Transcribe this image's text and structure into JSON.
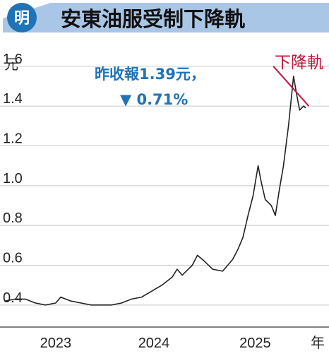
{
  "header": {
    "logo_char": "明",
    "title": "安東油服受制下降軌",
    "logo_bg": "#1f73b7",
    "banner_color": "#a9c6e6"
  },
  "annotation": {
    "line1": "昨收報1.39元，",
    "line2": "▼ 0.71%",
    "color": "#1f73b7"
  },
  "resistance": {
    "label": "下降軌",
    "color": "#c0143c",
    "from": {
      "t": 2025.4,
      "price": 1.6
    },
    "to": {
      "t": 2025.75,
      "price": 1.4
    }
  },
  "chart_data": {
    "type": "line",
    "title": "安東油服受制下降軌",
    "ylabel": "元",
    "xlabel": "年",
    "ylim": [
      0.3,
      1.72
    ],
    "xlim": [
      2022.7,
      2025.95
    ],
    "yticks": [
      0.4,
      0.6,
      0.8,
      1.0,
      1.2,
      1.4,
      1.6
    ],
    "ytick_labels": [
      "0.4",
      "0.6",
      "0.8",
      "1.0",
      "1.2",
      "1.4",
      "1.6"
    ],
    "xticks": [
      2023.25,
      2024.22,
      2025.22
    ],
    "xtick_labels": [
      "2023",
      "2024",
      "2025"
    ],
    "grid": true,
    "line_color": "#222222",
    "series": [
      {
        "name": "",
        "points": [
          [
            2022.75,
            0.42
          ],
          [
            2022.85,
            0.43
          ],
          [
            2022.95,
            0.43
          ],
          [
            2023.05,
            0.41
          ],
          [
            2023.15,
            0.4
          ],
          [
            2023.25,
            0.41
          ],
          [
            2023.3,
            0.44
          ],
          [
            2023.4,
            0.42
          ],
          [
            2023.5,
            0.41
          ],
          [
            2023.6,
            0.4
          ],
          [
            2023.7,
            0.4
          ],
          [
            2023.8,
            0.4
          ],
          [
            2023.9,
            0.41
          ],
          [
            2024.0,
            0.43
          ],
          [
            2024.1,
            0.44
          ],
          [
            2024.2,
            0.47
          ],
          [
            2024.3,
            0.5
          ],
          [
            2024.4,
            0.54
          ],
          [
            2024.45,
            0.58
          ],
          [
            2024.5,
            0.55
          ],
          [
            2024.6,
            0.6
          ],
          [
            2024.65,
            0.65
          ],
          [
            2024.72,
            0.62
          ],
          [
            2024.8,
            0.58
          ],
          [
            2024.9,
            0.57
          ],
          [
            2024.95,
            0.6
          ],
          [
            2025.0,
            0.63
          ],
          [
            2025.05,
            0.68
          ],
          [
            2025.1,
            0.74
          ],
          [
            2025.15,
            0.85
          ],
          [
            2025.2,
            0.95
          ],
          [
            2025.25,
            1.1
          ],
          [
            2025.28,
            1.02
          ],
          [
            2025.32,
            0.93
          ],
          [
            2025.38,
            0.9
          ],
          [
            2025.42,
            0.85
          ],
          [
            2025.46,
            0.98
          ],
          [
            2025.5,
            1.1
          ],
          [
            2025.55,
            1.3
          ],
          [
            2025.6,
            1.55
          ],
          [
            2025.63,
            1.46
          ],
          [
            2025.66,
            1.38
          ],
          [
            2025.7,
            1.4
          ],
          [
            2025.72,
            1.39
          ]
        ]
      }
    ]
  }
}
